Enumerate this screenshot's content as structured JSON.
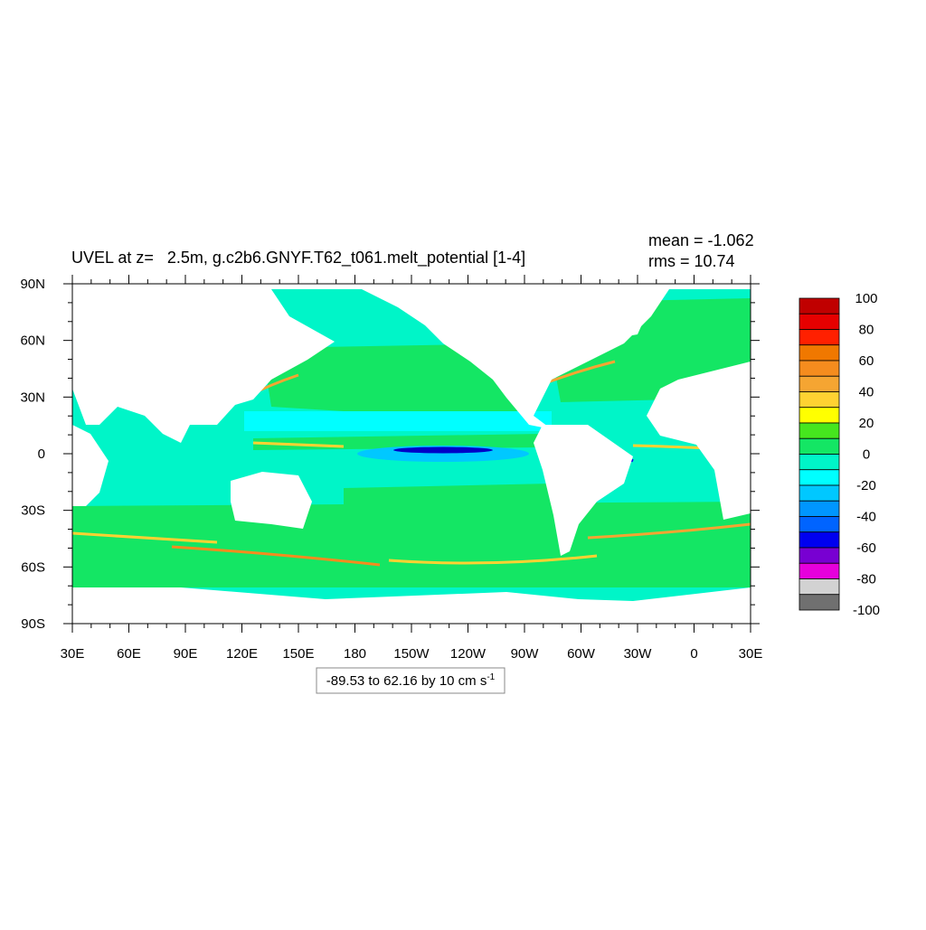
{
  "title": "UVEL at z=   2.5m, g.c2b6.GNYF.T62_t061.melt_potential [1-4]",
  "stats": {
    "mean": "mean = -1.062",
    "rms": "rms = 10.74"
  },
  "axes": {
    "x_labels": [
      "30E",
      "60E",
      "90E",
      "120E",
      "150E",
      "180",
      "150W",
      "120W",
      "90W",
      "60W",
      "30W",
      "0",
      "30E"
    ],
    "y_labels": [
      "90N",
      "60N",
      "30N",
      "0",
      "30S",
      "60S",
      "90S"
    ]
  },
  "colorbar": {
    "labels": [
      100,
      80,
      60,
      40,
      20,
      0,
      -20,
      -40,
      -60,
      -80,
      -100
    ],
    "colors": [
      "#c00000",
      "#e60000",
      "#ff2000",
      "#f07800",
      "#f58c1e",
      "#f5a532",
      "#ffd232",
      "#ffff00",
      "#46e61e",
      "#14e664",
      "#00f5c8",
      "#00ffff",
      "#00c8ff",
      "#0096ff",
      "#0064ff",
      "#0000f0",
      "#7800d2",
      "#e600dc",
      "#d2d2d2",
      "#707070"
    ]
  },
  "info": {
    "text": "-89.53 to 62.16 by 10 cm s",
    "superscript": "-1"
  }
}
